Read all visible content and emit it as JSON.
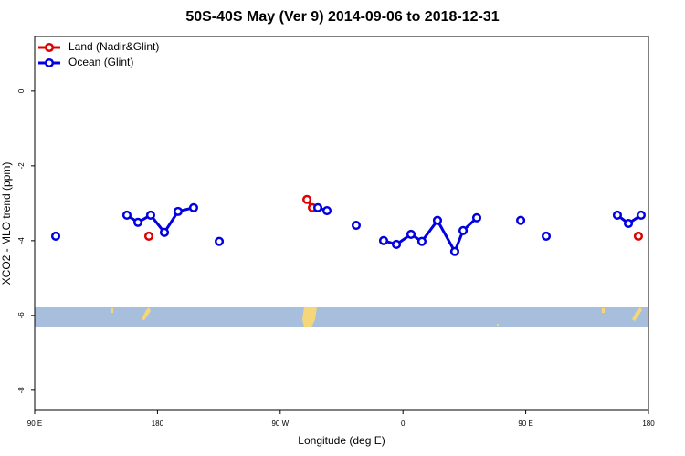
{
  "chart_data": {
    "type": "line",
    "title": "50S-40S May (Ver 9)   2014-09-06 to 2018-12-31",
    "x_label": "Longitude (deg E)",
    "y_label": "XCO2 - MLO trend (ppm)",
    "xlim": [
      90,
      540
    ],
    "ylim": [
      -8.54,
      1.46
    ],
    "xticks": [
      {
        "value": 90,
        "label": "90 E"
      },
      {
        "value": 180,
        "label": "180"
      },
      {
        "value": 270,
        "label": "90 W"
      },
      {
        "value": 360,
        "label": "0"
      },
      {
        "value": 450,
        "label": "90 E"
      },
      {
        "value": 540,
        "label": "180"
      }
    ],
    "yticks": [
      -8,
      -6,
      -4,
      -2,
      0
    ],
    "legend": "top-left",
    "series": [
      {
        "name": "Land (Nadir&Glint)",
        "color": "#e00000",
        "x": [
          173.7,
          230,
          289.6,
          293.6,
          400,
          532.6
        ],
        "values": [
          -3.88,
          null,
          -2.9,
          -3.12,
          null,
          -3.88
        ]
      },
      {
        "name": "Ocean (Glint)",
        "color": "#0000e0",
        "x": [
          105.4,
          130,
          157.6,
          165.7,
          175.0,
          185.1,
          195.1,
          206.5,
          215,
          225.3,
          250,
          297.6,
          304.3,
          315,
          325.7,
          335,
          345.8,
          355.2,
          365.9,
          373.9,
          385.3,
          398.0,
          404.1,
          414.1,
          440,
          446.3,
          455,
          465.0,
          490,
          517.2,
          525.3,
          534.6
        ],
        "values": [
          -3.88,
          null,
          -3.32,
          -3.51,
          -3.32,
          -3.78,
          -3.22,
          -3.12,
          null,
          -4.02,
          null,
          -3.12,
          -3.2,
          null,
          -3.59,
          null,
          -4.0,
          -4.1,
          -3.83,
          -4.02,
          -3.46,
          -4.29,
          -3.73,
          -3.39,
          null,
          -3.46,
          null,
          -3.88,
          null,
          -3.32,
          -3.54,
          -3.32
        ]
      }
    ]
  }
}
